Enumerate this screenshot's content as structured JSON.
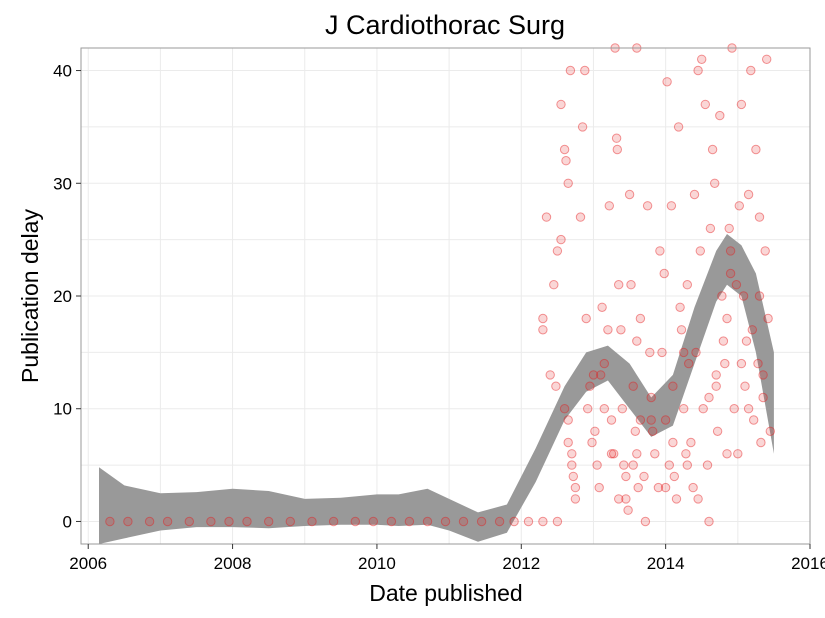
{
  "chart_data": {
    "type": "scatter",
    "title": "J Cardiothorac Surg",
    "xlabel": "Date published",
    "ylabel": "Publication delay",
    "xlim": [
      2005.9,
      2016.0
    ],
    "ylim": [
      -2,
      42
    ],
    "x_ticks": [
      2006,
      2008,
      2010,
      2012,
      2014,
      2016
    ],
    "x_tick_labels": [
      "2006",
      "2008",
      "2010",
      "2012",
      "2014",
      "2016"
    ],
    "y_ticks": [
      0,
      10,
      20,
      30,
      40
    ],
    "y_tick_labels": [
      "0",
      "10",
      "20",
      "30",
      "40"
    ],
    "grid": true,
    "point_color": "#e41a1c",
    "band_color": "#999999",
    "points": [
      [
        2006.3,
        0
      ],
      [
        2006.55,
        0
      ],
      [
        2006.85,
        0
      ],
      [
        2007.1,
        0
      ],
      [
        2007.4,
        0
      ],
      [
        2007.7,
        0
      ],
      [
        2007.95,
        0
      ],
      [
        2008.2,
        0
      ],
      [
        2008.5,
        0
      ],
      [
        2008.8,
        0
      ],
      [
        2009.1,
        0
      ],
      [
        2009.4,
        0
      ],
      [
        2009.7,
        0
      ],
      [
        2009.95,
        0
      ],
      [
        2010.2,
        0
      ],
      [
        2010.45,
        0
      ],
      [
        2010.7,
        0
      ],
      [
        2010.95,
        0
      ],
      [
        2011.2,
        0
      ],
      [
        2011.45,
        0
      ],
      [
        2011.7,
        0
      ],
      [
        2011.9,
        0
      ],
      [
        2012.1,
        0
      ],
      [
        2012.3,
        0
      ],
      [
        2012.5,
        0
      ],
      [
        2012.55,
        37
      ],
      [
        2012.6,
        33
      ],
      [
        2012.62,
        32
      ],
      [
        2012.65,
        30
      ],
      [
        2012.55,
        25
      ],
      [
        2012.5,
        24
      ],
      [
        2012.45,
        21
      ],
      [
        2012.35,
        27
      ],
      [
        2012.3,
        18
      ],
      [
        2012.3,
        17
      ],
      [
        2012.4,
        13
      ],
      [
        2012.48,
        12
      ],
      [
        2012.6,
        10
      ],
      [
        2012.65,
        7
      ],
      [
        2012.7,
        6
      ],
      [
        2012.7,
        5
      ],
      [
        2012.72,
        4
      ],
      [
        2012.75,
        3
      ],
      [
        2012.75,
        2
      ],
      [
        2012.68,
        40
      ],
      [
        2012.82,
        27
      ],
      [
        2012.85,
        35
      ],
      [
        2012.9,
        18
      ],
      [
        2012.88,
        40
      ],
      [
        2012.92,
        10
      ],
      [
        2012.95,
        12
      ],
      [
        2012.98,
        7
      ],
      [
        2013.02,
        8
      ],
      [
        2013.05,
        5
      ],
      [
        2013.08,
        3
      ],
      [
        2013.1,
        13
      ],
      [
        2013.12,
        19
      ],
      [
        2013.15,
        14
      ],
      [
        2013.2,
        17
      ],
      [
        2013.22,
        28
      ],
      [
        2013.25,
        6
      ],
      [
        2013.28,
        6
      ],
      [
        2013.3,
        42
      ],
      [
        2013.32,
        34
      ],
      [
        2013.33,
        33
      ],
      [
        2013.35,
        21
      ],
      [
        2013.38,
        17
      ],
      [
        2013.4,
        10
      ],
      [
        2013.42,
        5
      ],
      [
        2013.45,
        4
      ],
      [
        2013.45,
        2
      ],
      [
        2013.48,
        1
      ],
      [
        2013.5,
        29
      ],
      [
        2013.52,
        21
      ],
      [
        2013.55,
        12
      ],
      [
        2013.58,
        8
      ],
      [
        2013.6,
        42
      ],
      [
        2013.6,
        6
      ],
      [
        2013.62,
        3
      ],
      [
        2013.65,
        9
      ],
      [
        2013.7,
        4
      ],
      [
        2013.72,
        0
      ],
      [
        2013.75,
        28
      ],
      [
        2013.78,
        15
      ],
      [
        2013.8,
        11
      ],
      [
        2013.82,
        8
      ],
      [
        2013.85,
        6
      ],
      [
        2013.9,
        3
      ],
      [
        2013.92,
        24
      ],
      [
        2013.95,
        15
      ],
      [
        2013.98,
        22
      ],
      [
        2014.0,
        9
      ],
      [
        2014.02,
        39
      ],
      [
        2014.05,
        5
      ],
      [
        2014.08,
        28
      ],
      [
        2014.1,
        12
      ],
      [
        2014.12,
        4
      ],
      [
        2014.15,
        2
      ],
      [
        2014.18,
        35
      ],
      [
        2014.2,
        19
      ],
      [
        2014.22,
        17
      ],
      [
        2014.25,
        10
      ],
      [
        2014.28,
        6
      ],
      [
        2014.3,
        21
      ],
      [
        2014.32,
        14
      ],
      [
        2014.35,
        7
      ],
      [
        2014.38,
        3
      ],
      [
        2014.4,
        29
      ],
      [
        2014.42,
        15
      ],
      [
        2014.45,
        40
      ],
      [
        2014.48,
        24
      ],
      [
        2014.5,
        41
      ],
      [
        2014.52,
        10
      ],
      [
        2014.55,
        37
      ],
      [
        2014.58,
        5
      ],
      [
        2014.6,
        0
      ],
      [
        2014.62,
        26
      ],
      [
        2014.65,
        33
      ],
      [
        2014.68,
        30
      ],
      [
        2014.7,
        12
      ],
      [
        2014.72,
        8
      ],
      [
        2014.75,
        36
      ],
      [
        2014.78,
        20
      ],
      [
        2014.8,
        16
      ],
      [
        2014.82,
        14
      ],
      [
        2014.85,
        18
      ],
      [
        2014.88,
        26
      ],
      [
        2014.9,
        24
      ],
      [
        2014.92,
        42
      ],
      [
        2014.95,
        10
      ],
      [
        2014.98,
        21
      ],
      [
        2015.0,
        6
      ],
      [
        2015.02,
        28
      ],
      [
        2015.05,
        37
      ],
      [
        2015.08,
        20
      ],
      [
        2015.1,
        12
      ],
      [
        2015.12,
        16
      ],
      [
        2015.15,
        29
      ],
      [
        2015.18,
        40
      ],
      [
        2015.2,
        17
      ],
      [
        2015.22,
        9
      ],
      [
        2015.25,
        33
      ],
      [
        2015.28,
        14
      ],
      [
        2015.3,
        27
      ],
      [
        2015.32,
        7
      ],
      [
        2015.35,
        11
      ],
      [
        2015.38,
        24
      ],
      [
        2015.4,
        41
      ],
      [
        2015.42,
        18
      ],
      [
        2015.45,
        8
      ],
      [
        2013.0,
        13
      ],
      [
        2013.25,
        9
      ],
      [
        2013.55,
        5
      ],
      [
        2013.8,
        9
      ],
      [
        2014.1,
        7
      ],
      [
        2014.3,
        5
      ],
      [
        2014.6,
        11
      ],
      [
        2014.85,
        6
      ],
      [
        2015.15,
        10
      ],
      [
        2015.35,
        13
      ],
      [
        2013.35,
        2
      ],
      [
        2013.6,
        16
      ],
      [
        2014.0,
        3
      ],
      [
        2014.45,
        2
      ],
      [
        2014.9,
        22
      ],
      [
        2015.3,
        20
      ],
      [
        2012.65,
        9
      ],
      [
        2013.15,
        10
      ],
      [
        2013.65,
        18
      ],
      [
        2014.25,
        15
      ],
      [
        2014.7,
        13
      ],
      [
        2015.05,
        14
      ]
    ],
    "band": {
      "x": [
        2006.15,
        2006.5,
        2007.0,
        2007.5,
        2008.0,
        2008.5,
        2009.0,
        2009.5,
        2010.0,
        2010.3,
        2010.7,
        2011.0,
        2011.4,
        2011.8,
        2012.2,
        2012.6,
        2012.9,
        2013.2,
        2013.5,
        2013.8,
        2014.1,
        2014.4,
        2014.7,
        2014.85,
        2015.05,
        2015.25,
        2015.5
      ],
      "upper": [
        4.8,
        3.2,
        2.5,
        2.6,
        2.9,
        2.7,
        2.0,
        2.1,
        2.4,
        2.4,
        2.9,
        2.0,
        0.8,
        1.5,
        6.5,
        12.0,
        15.0,
        15.6,
        14.0,
        11.0,
        13.0,
        19.0,
        24.0,
        25.5,
        24.5,
        22.0,
        15.0
      ],
      "lower": [
        -2.0,
        -1.5,
        -0.8,
        -0.5,
        -0.5,
        -0.6,
        -0.4,
        -0.3,
        -0.3,
        -0.4,
        -0.3,
        -0.8,
        -1.8,
        -1.0,
        3.5,
        9.0,
        11.5,
        12.5,
        10.0,
        7.5,
        8.5,
        14.0,
        19.5,
        21.0,
        20.0,
        15.0,
        6.0
      ]
    }
  }
}
